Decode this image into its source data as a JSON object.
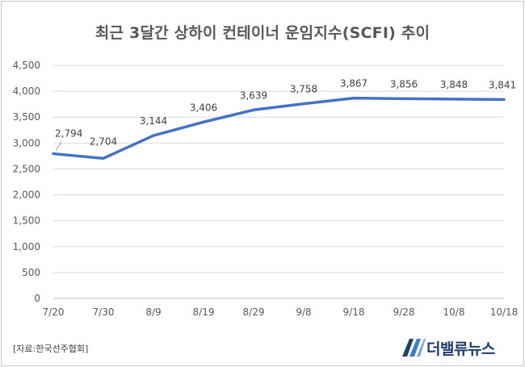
{
  "chart_data": {
    "type": "line",
    "title": "최근 3달간 상하이 컨테이너 운임지수(SCFI) 추이",
    "categories": [
      "7/20",
      "7/30",
      "8/9",
      "8/19",
      "8/29",
      "9/8",
      "9/18",
      "9/28",
      "10/8",
      "10/18"
    ],
    "y_ticks": [
      "0",
      "500",
      "1,000",
      "1,500",
      "2,000",
      "2,500",
      "3,000",
      "3,500",
      "4,000",
      "4,500"
    ],
    "ylim": [
      0,
      4500
    ],
    "grid": true,
    "legend": "none",
    "line_color": "#4472c4",
    "points": [
      {
        "x": 0,
        "y": 2794,
        "label": "2,794"
      },
      {
        "x": 10,
        "y": 2704,
        "label": "2,704"
      },
      {
        "x": 20,
        "y": 3144,
        "label": "3,144"
      },
      {
        "x": 30,
        "y": 3406,
        "label": "3,406"
      },
      {
        "x": 40,
        "y": 3639,
        "label": "3,639"
      },
      {
        "x": 50,
        "y": 3758,
        "label": "3,758"
      },
      {
        "x": 60,
        "y": 3867,
        "label": "3,867"
      },
      {
        "x": 70,
        "y": 3856,
        "label": "3,856"
      },
      {
        "x": 80,
        "y": 3848,
        "label": "3,848"
      },
      {
        "x": 90,
        "y": 3841,
        "label": "3,841"
      }
    ]
  },
  "source": "[자료:한국선주협회]",
  "logo_text": "더밸류뉴스",
  "logo_icon": "tv-logo-icon"
}
